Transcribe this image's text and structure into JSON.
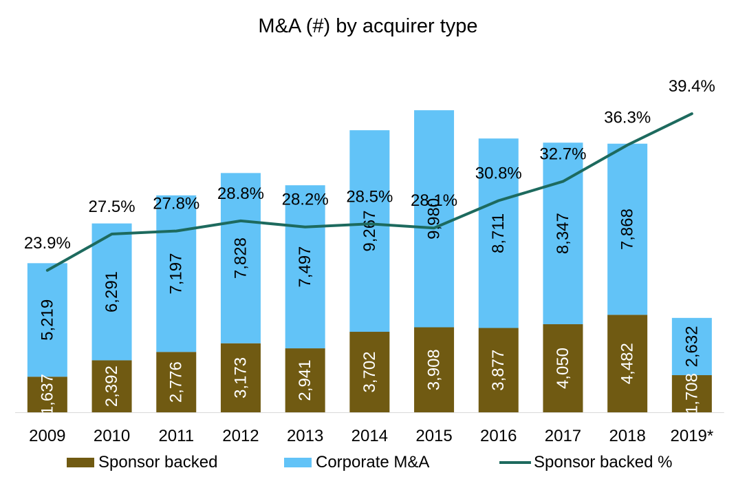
{
  "colors": {
    "sponsor": "#705A12",
    "corporate": "#62C3F7",
    "line": "#1D6A5E"
  },
  "chart_data": {
    "type": "bar",
    "stacked": true,
    "title": "M&A (#) by acquirer type",
    "categories": [
      "2009",
      "2010",
      "2011",
      "2012",
      "2013",
      "2014",
      "2015",
      "2016",
      "2017",
      "2018",
      "2019*"
    ],
    "series": [
      {
        "name": "Sponsor backed",
        "type": "bar",
        "values": [
          1637,
          2392,
          2776,
          3173,
          2941,
          3702,
          3908,
          3877,
          4050,
          4482,
          1708
        ],
        "labels": [
          "1,637",
          "2,392",
          "2,776",
          "3,173",
          "2,941",
          "3,702",
          "3,908",
          "3,877",
          "4,050",
          "4,482",
          "1,708"
        ]
      },
      {
        "name": "Corporate M&A",
        "type": "bar",
        "values": [
          5219,
          6291,
          7197,
          7828,
          7497,
          9267,
          9980,
          8711,
          8347,
          7868,
          2632
        ],
        "labels": [
          "5,219",
          "6,291",
          "7,197",
          "7,828",
          "7,497",
          "9,267",
          "9,980",
          "8,711",
          "8,347",
          "7,868",
          "2,632"
        ]
      },
      {
        "name": "Sponsor backed %",
        "type": "line",
        "values": [
          23.9,
          27.5,
          27.8,
          28.8,
          28.2,
          28.5,
          28.1,
          30.8,
          32.7,
          36.3,
          39.4
        ],
        "labels": [
          "23.9%",
          "27.5%",
          "27.8%",
          "28.8%",
          "28.2%",
          "28.5%",
          "28.1%",
          "30.8%",
          "32.7%",
          "36.3%",
          "39.4%"
        ]
      }
    ],
    "ylim": [
      0,
      15000
    ],
    "y2lim": [
      10,
      42
    ],
    "grid": false,
    "legend": "bottom"
  }
}
